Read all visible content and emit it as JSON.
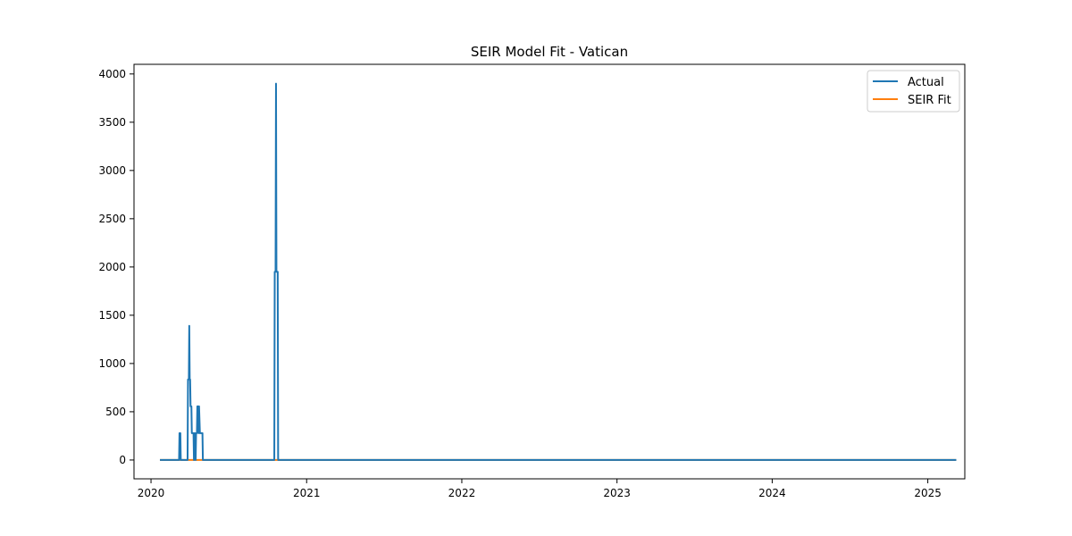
{
  "chart_data": {
    "type": "line",
    "title": "SEIR Model Fit - Vatican",
    "xlabel": "",
    "ylabel": "",
    "x_axis": "date",
    "xlim": [
      "2019-11-22",
      "2025-03-29"
    ],
    "ylim": [
      -195,
      4100
    ],
    "x_ticks": [
      {
        "date": "2020-01-01",
        "label": "2020"
      },
      {
        "date": "2021-01-01",
        "label": "2021"
      },
      {
        "date": "2022-01-01",
        "label": "2022"
      },
      {
        "date": "2023-01-01",
        "label": "2023"
      },
      {
        "date": "2024-01-01",
        "label": "2024"
      },
      {
        "date": "2025-01-01",
        "label": "2025"
      }
    ],
    "y_ticks": [
      0,
      500,
      1000,
      1500,
      2000,
      2500,
      3000,
      3500,
      4000
    ],
    "grid": false,
    "legend": "top-right",
    "series": [
      {
        "name": "Actual",
        "color": "#1f77b4",
        "points": [
          [
            "2020-01-22",
            0
          ],
          [
            "2020-03-07",
            0
          ],
          [
            "2020-03-08",
            278
          ],
          [
            "2020-03-10",
            278
          ],
          [
            "2020-03-11",
            0
          ],
          [
            "2020-03-27",
            0
          ],
          [
            "2020-03-28",
            835
          ],
          [
            "2020-03-30",
            835
          ],
          [
            "2020-03-31",
            1390
          ],
          [
            "2020-04-01",
            835
          ],
          [
            "2020-04-02",
            835
          ],
          [
            "2020-04-03",
            556
          ],
          [
            "2020-04-05",
            556
          ],
          [
            "2020-04-06",
            278
          ],
          [
            "2020-04-10",
            278
          ],
          [
            "2020-04-11",
            0
          ],
          [
            "2020-04-12",
            278
          ],
          [
            "2020-04-14",
            278
          ],
          [
            "2020-04-15",
            0
          ],
          [
            "2020-04-16",
            278
          ],
          [
            "2020-04-18",
            278
          ],
          [
            "2020-04-19",
            556
          ],
          [
            "2020-04-21",
            556
          ],
          [
            "2020-04-22",
            278
          ],
          [
            "2020-04-23",
            556
          ],
          [
            "2020-04-25",
            278
          ],
          [
            "2020-05-01",
            278
          ],
          [
            "2020-05-02",
            0
          ],
          [
            "2020-10-17",
            0
          ],
          [
            "2020-10-18",
            1950
          ],
          [
            "2020-10-20",
            1950
          ],
          [
            "2020-10-21",
            3900
          ],
          [
            "2020-10-22",
            1950
          ],
          [
            "2020-10-25",
            1950
          ],
          [
            "2020-10-26",
            0
          ],
          [
            "2025-03-09",
            0
          ]
        ]
      },
      {
        "name": "SEIR Fit",
        "color": "#ff7f0e",
        "points": [
          [
            "2020-01-22",
            0
          ],
          [
            "2025-03-09",
            0
          ]
        ]
      }
    ]
  }
}
